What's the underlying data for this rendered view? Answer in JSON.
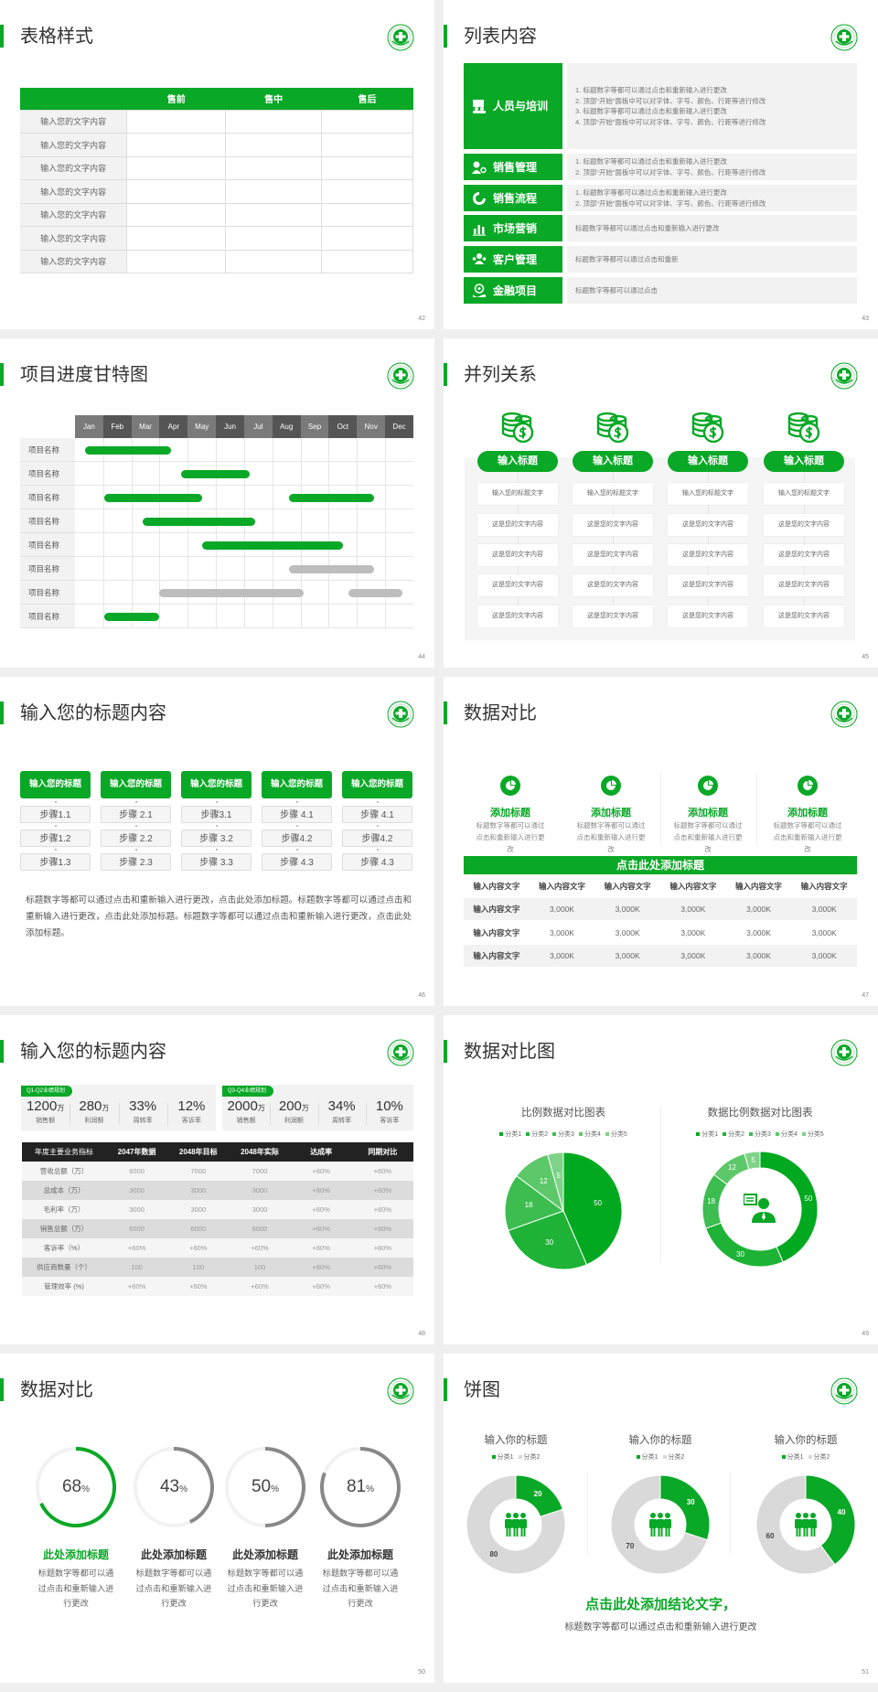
{
  "accent": "#09a826",
  "slide42": {
    "title": "表格样式",
    "page": "42",
    "table": {
      "headers": [
        "",
        "售前",
        "售中",
        "售后"
      ],
      "rows": [
        "输入您的文字内容",
        "输入您的文字内容",
        "输入您的文字内容",
        "输入您的文字内容",
        "输入您的文字内容",
        "输入您的文字内容",
        "输入您的文字内容"
      ]
    }
  },
  "slide43": {
    "title": "列表内容",
    "page": "43",
    "items": [
      {
        "label": "人员与培训",
        "icon": "training-icon",
        "lines": [
          "1.  标题数字等都可以通过点击和重新输入进行更改",
          "2.  顶部“开始”面板中可以对字体、字号、颜色、行距等进行修改",
          "3.  标题数字等都可以通过点击和重新输入进行更改",
          "4.  顶部“开始”面板中可以对字体、字号、颜色、行距等进行修改"
        ]
      },
      {
        "label": "销售管理",
        "icon": "sales-manager-icon",
        "lines": [
          "1.  标题数字等都可以通过点击和重新输入进行更改",
          "2.  顶部“开始”面板中可以对字体、字号、颜色、行距等进行修改"
        ]
      },
      {
        "label": "销售流程",
        "icon": "process-cycle-icon",
        "lines": [
          "1.  标题数字等都可以通过点击和重新输入进行更改",
          "2.  顶部“开始”面板中可以对字体、字号、颜色、行距等进行修改"
        ]
      },
      {
        "label": "市场营销",
        "icon": "bar-chart-icon",
        "lines": [
          "标题数字等都可以通过点击和重新输入进行更改"
        ]
      },
      {
        "label": "客户管理",
        "icon": "customer-group-icon",
        "lines": [
          "标题数字等都可以通过点击和重新"
        ]
      },
      {
        "label": "金融项目",
        "icon": "finance-icon",
        "lines": [
          "标题数字等都可以通过点击"
        ]
      }
    ]
  },
  "slide44": {
    "title": "项目进度甘特图",
    "page": "44",
    "months": [
      "Jan",
      "Feb",
      "Mar",
      "Apr",
      "May",
      "Jun",
      "Jul",
      "Aug",
      "Sep",
      "Oct",
      "Nov",
      "Dec"
    ],
    "rows": [
      "项目名称",
      "项目名称",
      "项目名称",
      "项目名称",
      "项目名称",
      "项目名称",
      "项目名称",
      "项目名称"
    ],
    "active_color": "#09a826",
    "planned_color": "#bdbdbd",
    "tasks": [
      {
        "row": 0,
        "start": 0.35,
        "end": 3.4,
        "status": "active"
      },
      {
        "row": 1,
        "start": 3.75,
        "end": 6.2,
        "status": "active"
      },
      {
        "row": 2,
        "start": 1.05,
        "end": 4.5,
        "status": "active"
      },
      {
        "row": 2,
        "start": 7.6,
        "end": 10.6,
        "status": "active"
      },
      {
        "row": 3,
        "start": 2.4,
        "end": 6.4,
        "status": "active"
      },
      {
        "row": 4,
        "start": 4.5,
        "end": 9.5,
        "status": "active"
      },
      {
        "row": 5,
        "start": 7.6,
        "end": 10.6,
        "status": "planned"
      },
      {
        "row": 6,
        "start": 3.0,
        "end": 8.1,
        "status": "planned"
      },
      {
        "row": 6,
        "start": 9.7,
        "end": 11.6,
        "status": "planned"
      },
      {
        "row": 7,
        "start": 1.05,
        "end": 3.0,
        "status": "active"
      }
    ]
  },
  "slide45": {
    "title": "并列关系",
    "page": "45",
    "columns": [
      {
        "heading": "输入标题",
        "icon": "coins-dollar-icon",
        "cells": [
          "输入您的标题文字",
          "这是您的文字内容",
          "这是您的文字内容",
          "这是您的文字内容",
          "这是您的文字内容"
        ]
      },
      {
        "heading": "输入标题",
        "icon": "coins-dollar-icon",
        "cells": [
          "输入您的标题文字",
          "这是您的文字内容",
          "这是您的文字内容",
          "这是您的文字内容",
          "这是您的文字内容"
        ]
      },
      {
        "heading": "输入标题",
        "icon": "coins-dollar-icon",
        "cells": [
          "输入您的标题文字",
          "这是您的文字内容",
          "这是您的文字内容",
          "这是您的文字内容",
          "这是您的文字内容"
        ]
      },
      {
        "heading": "输入标题",
        "icon": "coins-dollar-icon",
        "cells": [
          "输入您的标题文字",
          "这是您的文字内容",
          "这是您的文字内容",
          "这是您的文字内容",
          "这是您的文字内容"
        ]
      }
    ]
  },
  "slide46": {
    "title": "输入您的标题内容",
    "page": "46",
    "columns": [
      {
        "heading": "输入您的标题",
        "steps": [
          "步骤1.1",
          "步骤1.2",
          "步骤1.3"
        ]
      },
      {
        "heading": "输入您的标题",
        "steps": [
          "步骤 2.1",
          "步骤 2.2",
          "步骤 2.3"
        ]
      },
      {
        "heading": "输入您的标题",
        "steps": [
          "步骤3.1",
          "步骤 3.2",
          "步骤 3.3"
        ]
      },
      {
        "heading": "输入您的标题",
        "steps": [
          "步骤 4.1",
          "步骤4.2",
          "步骤 4.3"
        ]
      },
      {
        "heading": "输入您的标题",
        "steps": [
          "步骤 4.1",
          "步骤4.2",
          "步骤 4.3"
        ]
      }
    ],
    "paragraph": "标题数字等都可以通过点击和重新输入进行更改，点击此处添加标题。标题数字等都可以通过点击和重新输入进行更改，点击此处添加标题。标题数字等都可以通过点击和重新输入进行更改，点击此处添加标题。"
  },
  "slide47": {
    "title": "数据对比",
    "page": "47",
    "features": [
      {
        "title": "添加标题",
        "desc": "标题数字等都可以通过点击和重新输入进行更改",
        "icon": "pie-chart-icon"
      },
      {
        "title": "添加标题",
        "desc": "标题数字等都可以通过点击和重新输入进行更改",
        "icon": "pie-chart-icon"
      },
      {
        "title": "添加标题",
        "desc": "标题数字等都可以通过点击和重新输入进行更改",
        "icon": "pie-chart-icon"
      },
      {
        "title": "添加标题",
        "desc": "标题数字等都可以通过点击和重新输入进行更改",
        "icon": "pie-chart-icon"
      }
    ],
    "table_title": "点击此处添加标题",
    "headers": [
      "输入内容文字",
      "输入内容文字",
      "输入内容文字",
      "输入内容文字",
      "输入内容文字",
      "输入内容文字"
    ],
    "rows": [
      [
        "输入内容文字",
        "3,000K",
        "3,000K",
        "3,000K",
        "3,000K",
        "3,000K"
      ],
      [
        "输入内容文字",
        "3,000K",
        "3,000K",
        "3,000K",
        "3,000K",
        "3,000K"
      ],
      [
        "输入内容文字",
        "3,000K",
        "3,000K",
        "3,000K",
        "3,000K",
        "3,000K"
      ]
    ]
  },
  "slide48": {
    "title": "输入您的标题内容",
    "page": "48",
    "groups": [
      {
        "tag": "Q1-Q2业绩规划",
        "kpis": [
          {
            "value": "1200",
            "unit": "万",
            "label": "销售额"
          },
          {
            "value": "280",
            "unit": "万",
            "label": "利润额"
          },
          {
            "value": "33%",
            "unit": "",
            "label": "周转率"
          },
          {
            "value": "12%",
            "unit": "",
            "label": "客诉率"
          }
        ]
      },
      {
        "tag": "Q3-Q4业绩规划",
        "kpis": [
          {
            "value": "2000",
            "unit": "万",
            "label": "销售额"
          },
          {
            "value": "200",
            "unit": "万",
            "label": "利润额"
          },
          {
            "value": "34%",
            "unit": "",
            "label": "周转率"
          },
          {
            "value": "10%",
            "unit": "",
            "label": "客诉率"
          }
        ]
      }
    ],
    "headers": [
      "年度主要业务指标",
      "2047年数据",
      "2048年目标",
      "2048年实际",
      "达成率",
      "同期对比"
    ],
    "rows": [
      [
        "营收总额（万）",
        "6000",
        "7000",
        "7000",
        "+60%",
        "+60%"
      ],
      [
        "总成本（万）",
        "3000",
        "3000",
        "3000",
        "+60%",
        "+60%"
      ],
      [
        "毛利率（万）",
        "3000",
        "3000",
        "3000",
        "+60%",
        "+60%"
      ],
      [
        "销售总额（万）",
        "6000",
        "6000",
        "6000",
        "+60%",
        "+60%"
      ],
      [
        "客诉率（%）",
        "+60%",
        "+60%",
        "+60%",
        "+60%",
        "+60%"
      ],
      [
        "供应商数量（个）",
        "100",
        "100",
        "100",
        "+60%",
        "+60%"
      ],
      [
        "管理效率 (%)",
        "+60%",
        "+60%",
        "+60%",
        "+60%",
        "+60%"
      ]
    ]
  },
  "slide49": {
    "title": "数据对比图",
    "page": "49"
  },
  "slide50": {
    "title": "数据对比",
    "page": "50",
    "rings": [
      {
        "value": 68,
        "unit": "%",
        "heading": "此处添加标题",
        "desc": "标题数字等都可以通过点击和重新输入进行更改",
        "color": "#09a826"
      },
      {
        "value": 43,
        "unit": "%",
        "heading": "此处添加标题",
        "desc": "标题数字等都可以通过点击和重新输入进行更改",
        "color": "#888888"
      },
      {
        "value": 50,
        "unit": "%",
        "heading": "此处添加标题",
        "desc": "标题数字等都可以通过点击和重新输入进行更改",
        "color": "#888888"
      },
      {
        "value": 81,
        "unit": "%",
        "heading": "此处添加标题",
        "desc": "标题数字等都可以通过点击和重新输入进行更改",
        "color": "#888888"
      }
    ]
  },
  "slide51": {
    "title": "饼图",
    "page": "51",
    "conclusion": "点击此处添加结论文字，",
    "subtext": "标题数字等都可以通过点击和重新输入进行更改"
  },
  "chart_data": [
    {
      "type": "pie",
      "title": "比例数据对比图表",
      "categories": [
        "分类1",
        "分类2",
        "分类3",
        "分类4",
        "分类5"
      ],
      "values": [
        50,
        30,
        18,
        12,
        5
      ],
      "colors": [
        "#00a91f",
        "#1eb336",
        "#3dbd50",
        "#5cc86a",
        "#7fd388"
      ],
      "legend": "top",
      "donut": false
    },
    {
      "type": "pie",
      "title": "数据比例数据对比图表",
      "categories": [
        "分类1",
        "分类2",
        "分类3",
        "分类4",
        "分类5"
      ],
      "values": [
        50,
        30,
        18,
        12,
        5
      ],
      "colors": [
        "#00a91f",
        "#1eb336",
        "#3dbd50",
        "#5cc86a",
        "#7fd388"
      ],
      "legend": "top",
      "donut": true,
      "center_icon": "consultant-icon"
    },
    {
      "type": "pie",
      "title": "输入你的标题",
      "categories": [
        "分类1",
        "分类2"
      ],
      "values": [
        20,
        80
      ],
      "colors": [
        "#09a826",
        "#d9d9d9"
      ],
      "legend": "top",
      "donut": true,
      "center_icon": "team-icon"
    },
    {
      "type": "pie",
      "title": "输入你的标题",
      "categories": [
        "分类1",
        "分类2"
      ],
      "values": [
        30,
        70
      ],
      "colors": [
        "#09a826",
        "#d9d9d9"
      ],
      "legend": "top",
      "donut": true,
      "center_icon": "team-icon"
    },
    {
      "type": "pie",
      "title": "输入你的标题",
      "categories": [
        "分类1",
        "分类2"
      ],
      "values": [
        40,
        60
      ],
      "colors": [
        "#09a826",
        "#d9d9d9"
      ],
      "legend": "top",
      "donut": true,
      "center_icon": "team-icon"
    }
  ]
}
